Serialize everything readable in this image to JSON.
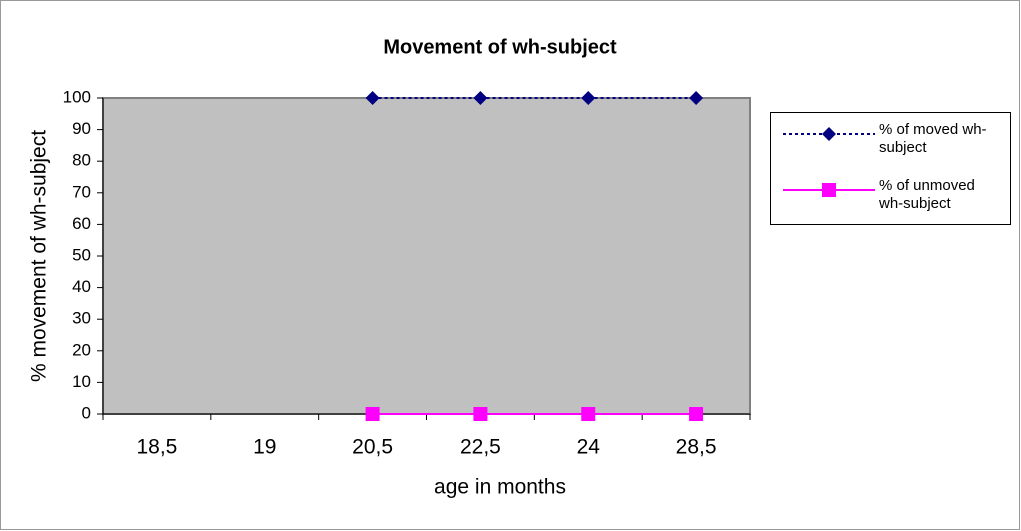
{
  "chart_data": {
    "type": "line",
    "title": "Movement of wh-subject",
    "x_label": "age in months",
    "y_label": "% movement of wh-subject",
    "categories": [
      "18,5",
      "19",
      "20,5",
      "22,5",
      "24",
      "28,5"
    ],
    "series": [
      {
        "name": "% of moved wh-subject",
        "color": "#000080",
        "dash": "dotted",
        "marker": "diamond",
        "values": [
          null,
          null,
          100,
          100,
          100,
          100
        ]
      },
      {
        "name": "% of unmoved wh-subject",
        "color": "#ff00ff",
        "dash": "solid",
        "marker": "square",
        "values": [
          null,
          null,
          0,
          0,
          0,
          0
        ]
      }
    ],
    "ylim": [
      0,
      100
    ],
    "yticks": [
      0,
      10,
      20,
      30,
      40,
      50,
      60,
      70,
      80,
      90,
      100
    ],
    "plot_color": "#c0c0c0",
    "legend": "right"
  }
}
